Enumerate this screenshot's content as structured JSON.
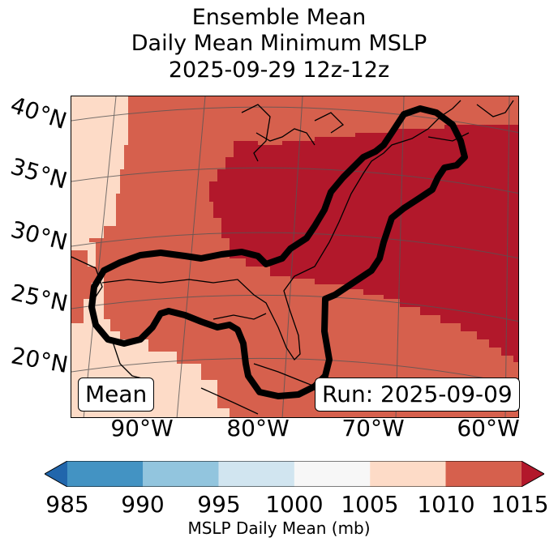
{
  "title": {
    "line1": "Ensemble Mean",
    "line2": "Daily Mean Minimum MSLP",
    "line3": "2025-09-29 12z-12z"
  },
  "map": {
    "lat_labels": [
      "40°N",
      "35°N",
      "30°N",
      "25°N",
      "20°N"
    ],
    "lon_labels": [
      "90°W",
      "80°W",
      "70°W",
      "60°W"
    ],
    "mean_box": "Mean",
    "run_box": "Run: 2025-09-09"
  },
  "colorbar": {
    "ticks": [
      "985",
      "990",
      "995",
      "1000",
      "1005",
      "1010",
      "1015"
    ],
    "label": "MSLP Daily Mean (mb)",
    "colors": [
      "#2166ac",
      "#4393c3",
      "#92c5de",
      "#d1e5f0",
      "#f7f7f7",
      "#fddbc7",
      "#d6604d",
      "#b2182b"
    ]
  },
  "chart_data": {
    "type": "heatmap",
    "title": "Ensemble Mean Daily Mean Minimum MSLP 2025-09-29 12z-12z",
    "levels_mb": [
      985,
      990,
      995,
      1000,
      1005,
      1010,
      1015
    ],
    "extend": "both",
    "colorbar_label": "MSLP Daily Mean (mb)",
    "lat_range": [
      16,
      42
    ],
    "lon_range": [
      -96,
      -60
    ]
  }
}
